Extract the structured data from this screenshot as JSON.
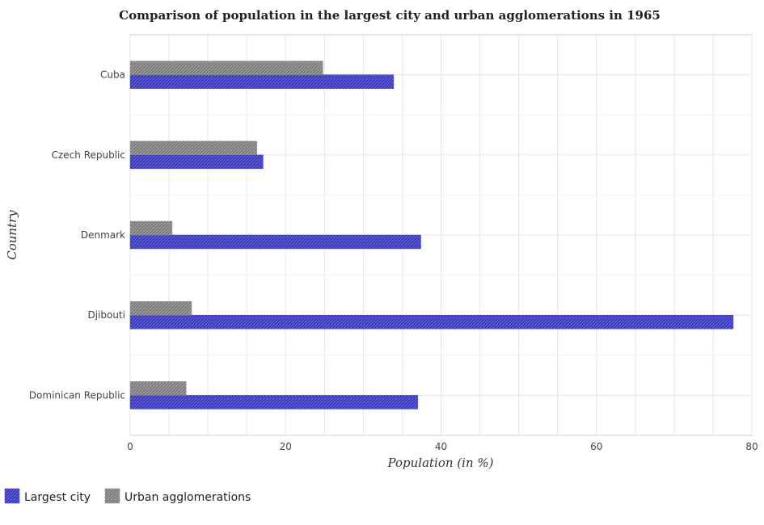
{
  "chart_data": {
    "type": "bar",
    "orientation": "horizontal",
    "title": "Comparison of population in the largest city and urban agglomerations in 1965",
    "xlabel": "Population (in %)",
    "ylabel": "Country",
    "xlim": [
      0,
      80
    ],
    "xticks": [
      0,
      20,
      40,
      60,
      80
    ],
    "categories": [
      "Cuba",
      "Czech Republic",
      "Denmark",
      "Djibouti",
      "Dominican Republic"
    ],
    "series": [
      {
        "name": "Largest city",
        "color": "#4141c8",
        "values": [
          33.9,
          17.1,
          37.4,
          77.6,
          37.0
        ]
      },
      {
        "name": "Urban agglomerations",
        "color": "#8c8c8c",
        "values": [
          24.8,
          16.3,
          5.4,
          7.9,
          7.2
        ]
      }
    ],
    "grid": true,
    "legend": "bottom-left"
  }
}
